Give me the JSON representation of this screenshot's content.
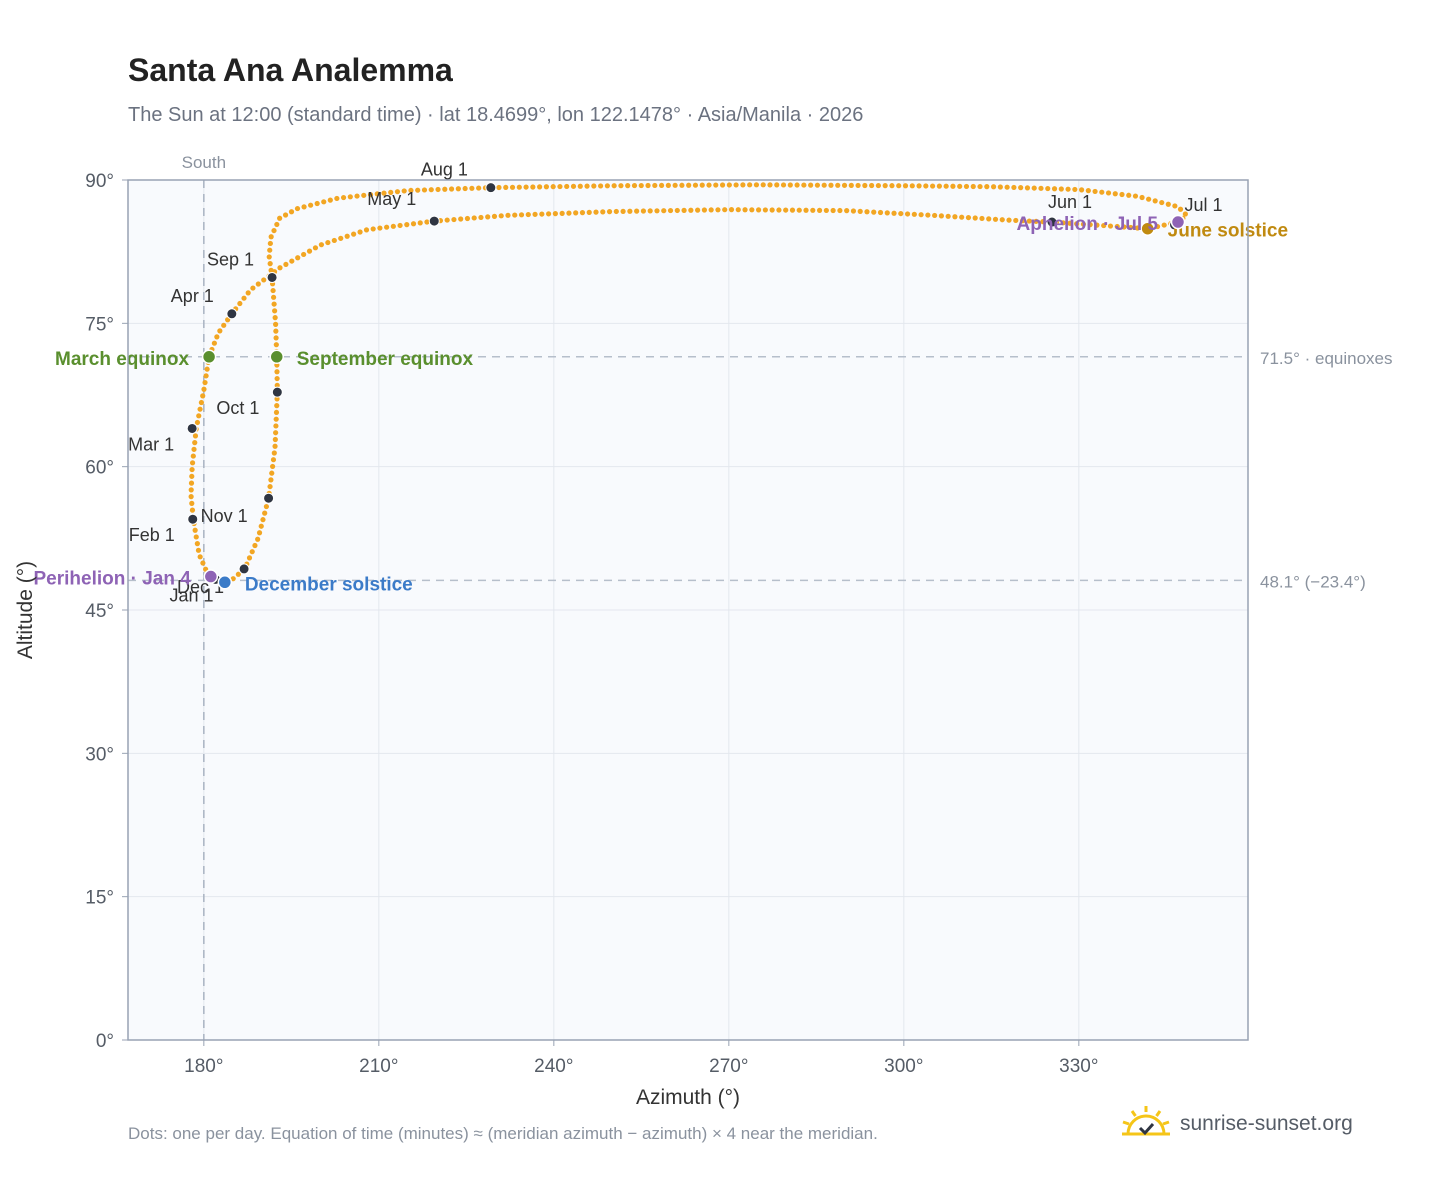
{
  "chart_data": {
    "type": "scatter",
    "title": "Santa Ana Analemma",
    "subtitle": "The Sun at 12:00 (standard time) · lat 18.4699°, lon 122.1478° · Asia/Manila · 2026",
    "xlabel": "Azimuth (°)",
    "ylabel": "Altitude (°)",
    "xlim": [
      167,
      359
    ],
    "ylim": [
      0,
      90
    ],
    "x_ticks": [
      180,
      210,
      240,
      270,
      300,
      330
    ],
    "x_tick_labels": [
      "180°",
      "210°",
      "240°",
      "270°",
      "300°",
      "330°"
    ],
    "y_ticks": [
      0,
      15,
      30,
      45,
      60,
      75,
      90
    ],
    "y_tick_labels": [
      "0°",
      "15°",
      "30°",
      "45°",
      "60°",
      "75°",
      "90°"
    ],
    "grid": true,
    "reference_lines": [
      {
        "axis": "x",
        "value": 180,
        "label": "South"
      },
      {
        "axis": "y",
        "value": 71.5,
        "label": "71.5° · equinoxes"
      },
      {
        "axis": "y",
        "value": 48.1,
        "label": "48.1° (−23.4°)"
      }
    ],
    "daily_path": [
      {
        "az": 181.8,
        "alt": 48.2
      },
      {
        "az": 180.5,
        "alt": 49.0
      },
      {
        "az": 179.2,
        "alt": 50.8
      },
      {
        "az": 178.2,
        "alt": 54.5
      },
      {
        "az": 177.8,
        "alt": 57.0
      },
      {
        "az": 178.0,
        "alt": 60.0
      },
      {
        "az": 178.7,
        "alt": 64.0
      },
      {
        "az": 180.0,
        "alt": 68.0
      },
      {
        "az": 180.9,
        "alt": 71.5
      },
      {
        "az": 182.5,
        "alt": 74.0
      },
      {
        "az": 184.8,
        "alt": 76.0
      },
      {
        "az": 188.0,
        "alt": 78.5
      },
      {
        "az": 193.0,
        "alt": 80.8
      },
      {
        "az": 200.0,
        "alt": 83.2
      },
      {
        "az": 208.0,
        "alt": 84.8
      },
      {
        "az": 219.5,
        "alt": 85.7
      },
      {
        "az": 232.0,
        "alt": 86.3
      },
      {
        "az": 250.0,
        "alt": 86.7
      },
      {
        "az": 270.0,
        "alt": 86.9
      },
      {
        "az": 290.0,
        "alt": 86.8
      },
      {
        "az": 305.0,
        "alt": 86.3
      },
      {
        "az": 318.0,
        "alt": 85.8
      },
      {
        "az": 325.4,
        "alt": 85.6
      },
      {
        "az": 335.0,
        "alt": 85.2
      },
      {
        "az": 341.8,
        "alt": 84.9
      },
      {
        "az": 345.5,
        "alt": 85.4
      },
      {
        "az": 347.0,
        "alt": 85.6
      },
      {
        "az": 348.5,
        "alt": 86.3
      },
      {
        "az": 347.0,
        "alt": 87.2
      },
      {
        "az": 340.0,
        "alt": 88.3
      },
      {
        "az": 330.0,
        "alt": 89.0
      },
      {
        "az": 315.0,
        "alt": 89.3
      },
      {
        "az": 300.0,
        "alt": 89.4
      },
      {
        "az": 275.0,
        "alt": 89.5
      },
      {
        "az": 250.0,
        "alt": 89.4
      },
      {
        "az": 229.2,
        "alt": 89.2
      },
      {
        "az": 215.0,
        "alt": 88.9
      },
      {
        "az": 203.0,
        "alt": 88.1
      },
      {
        "az": 196.0,
        "alt": 87.0
      },
      {
        "az": 193.0,
        "alt": 86.0
      },
      {
        "az": 191.5,
        "alt": 84.0
      },
      {
        "az": 191.2,
        "alt": 82.0
      },
      {
        "az": 191.7,
        "alt": 79.8
      },
      {
        "az": 192.3,
        "alt": 75.0
      },
      {
        "az": 192.5,
        "alt": 71.5
      },
      {
        "az": 192.6,
        "alt": 67.8
      },
      {
        "az": 192.2,
        "alt": 62.0
      },
      {
        "az": 191.1,
        "alt": 56.7
      },
      {
        "az": 189.3,
        "alt": 52.5
      },
      {
        "az": 187.0,
        "alt": 49.3
      },
      {
        "az": 184.5,
        "alt": 48.0
      },
      {
        "az": 183.5,
        "alt": 47.9
      },
      {
        "az": 181.8,
        "alt": 48.2
      }
    ],
    "month_markers": [
      {
        "label": "Jan 1",
        "az": 182.0,
        "alt": 48.2
      },
      {
        "label": "Feb 1",
        "az": 178.1,
        "alt": 54.5
      },
      {
        "label": "Mar 1",
        "az": 178.0,
        "alt": 64.0
      },
      {
        "label": "Apr 1",
        "az": 184.8,
        "alt": 76.0
      },
      {
        "label": "May 1",
        "az": 219.5,
        "alt": 85.7
      },
      {
        "label": "Jun 1",
        "az": 325.4,
        "alt": 85.6
      },
      {
        "label": "Jul 1",
        "az": 346.4,
        "alt": 85.3
      },
      {
        "label": "Aug 1",
        "az": 229.2,
        "alt": 89.2
      },
      {
        "label": "Sep 1",
        "az": 191.7,
        "alt": 79.8
      },
      {
        "label": "Oct 1",
        "az": 192.6,
        "alt": 67.8
      },
      {
        "label": "Nov 1",
        "az": 191.1,
        "alt": 56.7
      },
      {
        "label": "Dec 1",
        "az": 186.9,
        "alt": 49.3
      }
    ],
    "events": [
      {
        "label": "March equinox",
        "az": 180.9,
        "alt": 71.5,
        "color": "#5a8f2e"
      },
      {
        "label": "September equinox",
        "az": 192.5,
        "alt": 71.5,
        "color": "#5a8f2e"
      },
      {
        "label": "December solstice",
        "az": 183.6,
        "alt": 47.9,
        "color": "#3b7bc8"
      },
      {
        "label": "June solstice",
        "az": 341.8,
        "alt": 84.9,
        "color": "#c08a10"
      },
      {
        "label": "Perihelion · Jan 4",
        "az": 181.2,
        "alt": 48.5,
        "color": "#8e63b5"
      },
      {
        "label": "Aphelion · Jul 5",
        "az": 347.0,
        "alt": 85.6,
        "color": "#8e63b5"
      }
    ],
    "colors": {
      "path": "#f2a623",
      "marker": "#2f3542"
    }
  },
  "footnote": "Dots: one per day. Equation of time (minutes) ≈ (meridian azimuth − azimuth) × 4 near the meridian.",
  "brand": {
    "name": "sunrise-sunset.org",
    "icon": "sun-logo-icon"
  }
}
